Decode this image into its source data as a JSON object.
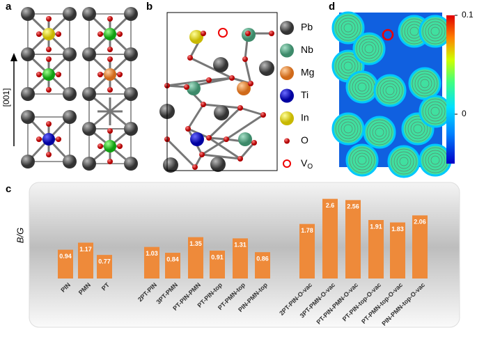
{
  "panels": {
    "a": "a",
    "b": "b",
    "c": "c",
    "d": "d"
  },
  "axis_label_a": "[001]",
  "legend": {
    "items": [
      "Pb",
      "Nb",
      "Mg",
      "Ti",
      "In",
      "O"
    ],
    "vacancy": {
      "main": "V",
      "sub": "O"
    }
  },
  "colorbar": {
    "lim": [
      -0.05,
      0.1
    ],
    "ticks": [
      0.1,
      0
    ]
  },
  "chart_data": {
    "type": "bar",
    "y_label": "B/G",
    "color": "#ee8a3a",
    "categories": [
      "PIN",
      "PMN",
      "PT",
      "2PT-PIN",
      "3PT-PMN",
      "PT-PIN-PMN",
      "PT-PIN-top",
      "PT-PMN-top",
      "PIN-PMN-top",
      "2PT-PIN-O-vac",
      "3PT-PMN-O-vac",
      "PT-PIN-PMN-O-vac",
      "PT-PIN-top-O-vac",
      "PT-PMN-top-O-vac",
      "PIN-PMN-top-O-vac"
    ],
    "values": [
      0.94,
      1.17,
      0.77,
      1.03,
      0.84,
      1.35,
      0.91,
      1.31,
      0.86,
      1.78,
      2.6,
      2.56,
      1.91,
      1.83,
      2.06
    ],
    "ylim": [
      0,
      3
    ]
  }
}
